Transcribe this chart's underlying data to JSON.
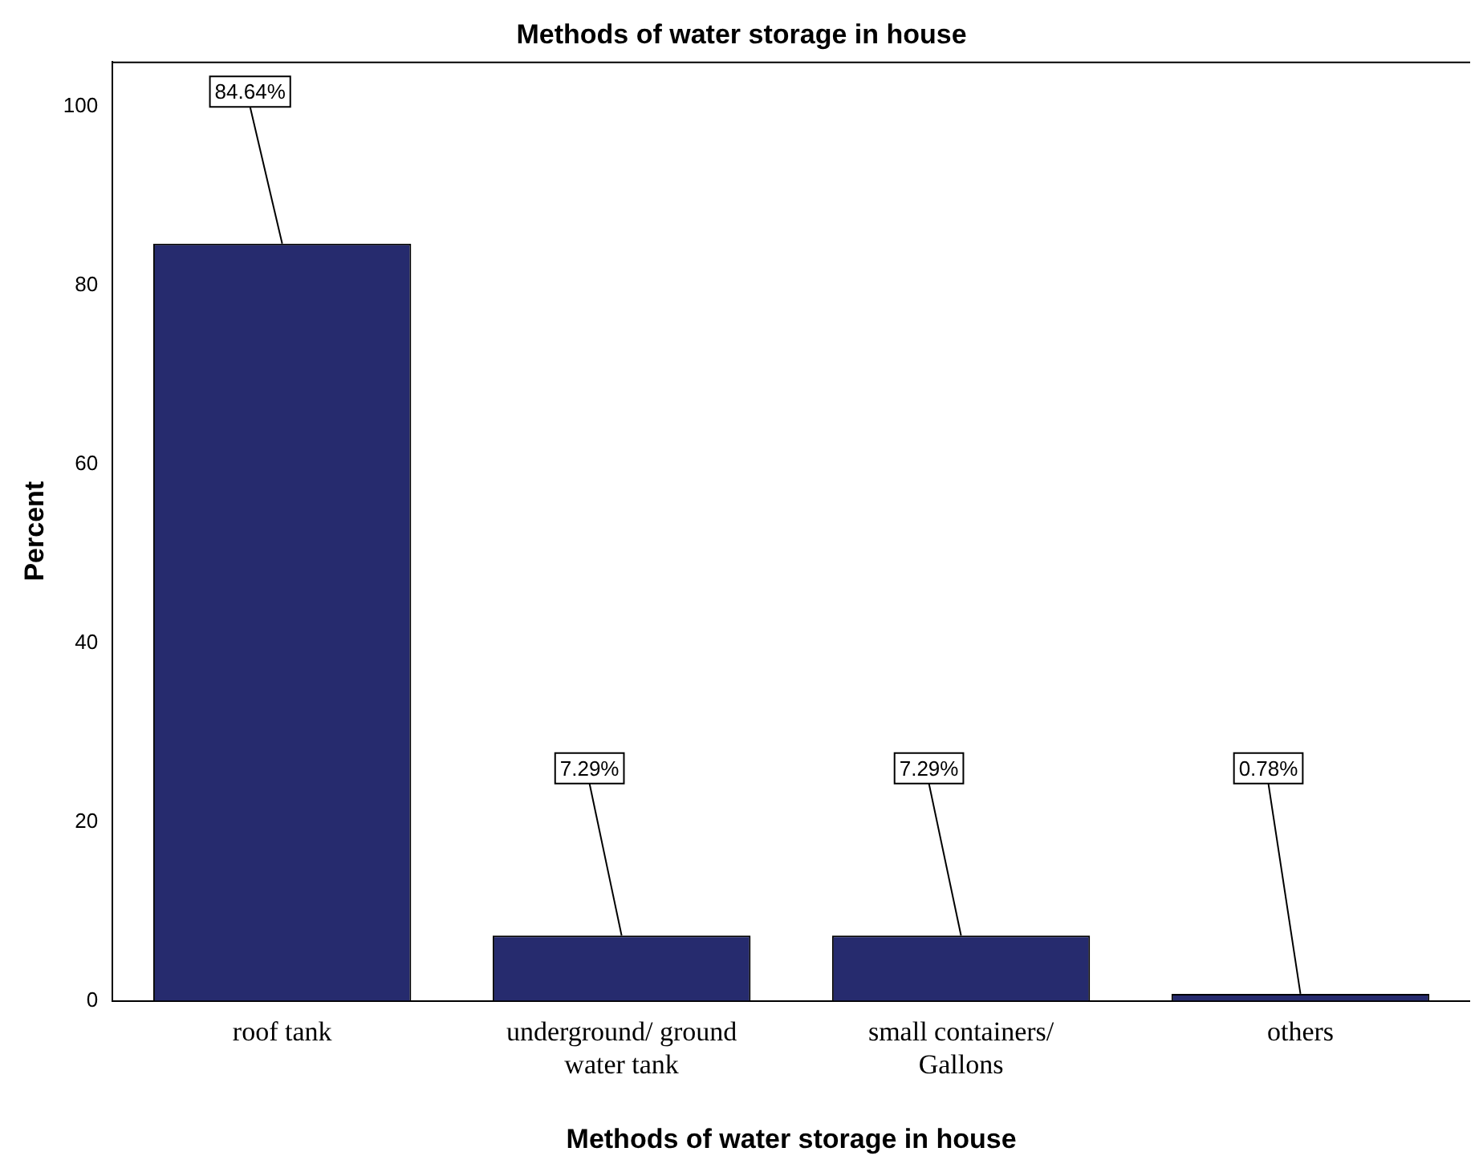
{
  "chart_data": {
    "type": "bar",
    "title": "Methods of water storage in house",
    "xlabel": "Methods of water storage in house",
    "ylabel": "Percent",
    "categories": [
      "roof tank",
      "underground/ ground water tank",
      "small containers/ Gallons",
      "others"
    ],
    "values": [
      84.64,
      7.29,
      7.29,
      0.78
    ],
    "value_labels": [
      "84.64%",
      "7.29%",
      "7.29%",
      "0.78%"
    ],
    "color": "#262b6e",
    "ylim": [
      0,
      105
    ],
    "yticks": [
      0,
      20,
      40,
      60,
      80,
      100
    ],
    "grid": false,
    "legend": false
  }
}
